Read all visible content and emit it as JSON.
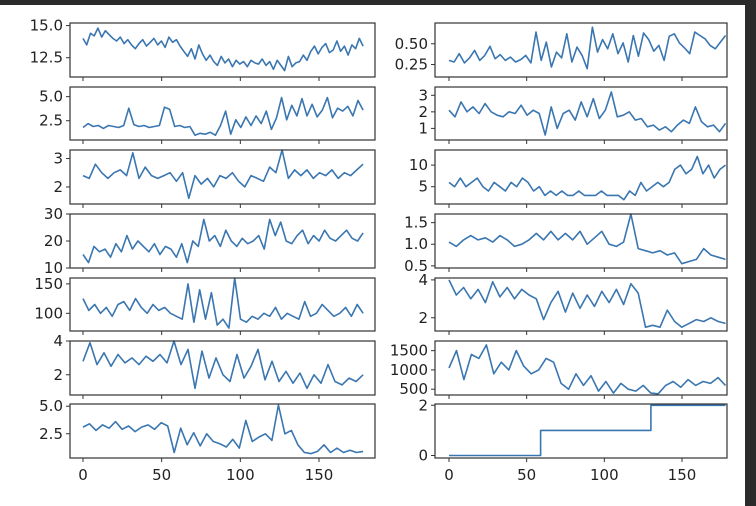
{
  "figure": {
    "background": "#ffffff",
    "frame_color": "#2b2b2b",
    "line_color": "#3a76b0",
    "axis_color": "#333333"
  },
  "chart_data": [
    {
      "type": "line",
      "panel": "r1c1",
      "x_range": [
        0,
        178
      ],
      "ylim": [
        11,
        15.2
      ],
      "yticks": [
        12.5,
        15.0
      ],
      "ytick_labels": [
        "12.5",
        "15.0"
      ],
      "y": [
        14.0,
        13.5,
        14.4,
        14.2,
        14.8,
        14.1,
        14.6,
        14.3,
        14.0,
        13.8,
        14.1,
        13.6,
        13.9,
        13.5,
        13.2,
        13.6,
        13.9,
        13.4,
        13.7,
        14.0,
        13.5,
        13.8,
        13.3,
        14.1,
        13.7,
        13.9,
        13.4,
        13.0,
        12.6,
        13.2,
        12.4,
        13.5,
        12.8,
        12.3,
        12.7,
        12.2,
        11.9,
        12.6,
        12.1,
        12.4,
        11.8,
        12.3,
        12.0,
        12.2,
        11.8,
        12.3,
        12.1,
        12.0,
        12.4,
        11.9,
        12.2,
        11.6,
        12.3,
        11.9,
        11.5,
        12.6,
        11.8,
        12.1,
        12.2,
        12.7,
        12.3,
        13.0,
        13.4,
        12.8,
        13.3,
        13.6,
        12.9,
        13.1,
        13.8,
        13.0,
        13.4,
        12.7,
        13.5,
        13.2,
        14.0,
        13.4
      ]
    },
    {
      "type": "line",
      "panel": "r1c2",
      "x_range": [
        0,
        178
      ],
      "ylim": [
        0.1,
        0.75
      ],
      "yticks": [
        0.25,
        0.5
      ],
      "ytick_labels": [
        "0.25",
        "0.50"
      ],
      "y": [
        0.3,
        0.28,
        0.38,
        0.27,
        0.33,
        0.42,
        0.3,
        0.36,
        0.47,
        0.32,
        0.37,
        0.3,
        0.34,
        0.28,
        0.31,
        0.36,
        0.27,
        0.64,
        0.3,
        0.52,
        0.22,
        0.4,
        0.33,
        0.62,
        0.28,
        0.46,
        0.36,
        0.2,
        0.7,
        0.4,
        0.55,
        0.44,
        0.62,
        0.38,
        0.51,
        0.28,
        0.6,
        0.35,
        0.63,
        0.55,
        0.41,
        0.48,
        0.3,
        0.59,
        0.62,
        0.51,
        0.45,
        0.38,
        0.64,
        0.6,
        0.56,
        0.48,
        0.44,
        0.52,
        0.6
      ]
    },
    {
      "type": "line",
      "panel": "r2c1",
      "x_range": [
        0,
        178
      ],
      "ylim": [
        0.5,
        6.0
      ],
      "yticks": [
        2.5,
        5.0
      ],
      "ytick_labels": [
        "2.5",
        "5.0"
      ],
      "y": [
        1.8,
        2.2,
        1.9,
        2.0,
        1.7,
        2.0,
        1.9,
        1.8,
        2.0,
        3.8,
        2.1,
        1.9,
        2.0,
        1.8,
        1.9,
        2.0,
        3.9,
        3.7,
        1.9,
        2.0,
        1.8,
        1.9,
        1.0,
        1.2,
        1.1,
        1.3,
        1.0,
        2.0,
        3.5,
        1.1,
        2.6,
        1.8,
        2.9,
        2.0,
        3.0,
        2.2,
        3.5,
        1.6,
        2.8,
        4.9,
        2.6,
        4.1,
        3.0,
        4.8,
        3.0,
        4.2,
        2.9,
        3.6,
        4.9,
        2.8,
        3.8,
        3.5,
        4.0,
        3.0,
        4.6,
        3.6
      ]
    },
    {
      "type": "line",
      "panel": "r2c2",
      "x_range": [
        0,
        178
      ],
      "ylim": [
        0.3,
        3.5
      ],
      "yticks": [
        1,
        2,
        3
      ],
      "ytick_labels": [
        "1",
        "2",
        "3"
      ],
      "y": [
        2.1,
        1.7,
        2.6,
        2.0,
        2.3,
        1.9,
        2.5,
        2.0,
        1.8,
        1.7,
        2.0,
        1.9,
        2.4,
        1.8,
        2.1,
        1.9,
        0.6,
        2.3,
        1.0,
        1.9,
        2.1,
        1.5,
        2.6,
        1.7,
        2.8,
        1.6,
        2.1,
        3.2,
        1.7,
        1.8,
        2.0,
        1.5,
        1.6,
        1.1,
        1.2,
        0.9,
        1.1,
        0.8,
        1.2,
        1.5,
        1.3,
        2.3,
        1.4,
        1.1,
        1.2,
        0.8,
        1.3
      ]
    },
    {
      "type": "line",
      "panel": "r3c1",
      "x_range": [
        0,
        178
      ],
      "ylim": [
        1.4,
        3.3
      ],
      "yticks": [
        2,
        3
      ],
      "ytick_labels": [
        "2",
        "3"
      ],
      "y": [
        2.4,
        2.3,
        2.8,
        2.5,
        2.3,
        2.5,
        2.6,
        2.4,
        3.2,
        2.3,
        2.7,
        2.4,
        2.3,
        2.4,
        2.5,
        2.2,
        2.5,
        1.6,
        2.4,
        2.1,
        2.3,
        2.0,
        2.4,
        2.3,
        2.5,
        2.2,
        2.0,
        2.4,
        2.3,
        2.2,
        2.7,
        2.5,
        3.3,
        2.3,
        2.6,
        2.4,
        2.6,
        2.3,
        2.5,
        2.4,
        2.6,
        2.3,
        2.5,
        2.4,
        2.6,
        2.8
      ]
    },
    {
      "type": "line",
      "panel": "r3c2",
      "x_range": [
        0,
        178
      ],
      "ylim": [
        1,
        13.5
      ],
      "yticks": [
        5,
        10
      ],
      "ytick_labels": [
        "5",
        "10"
      ],
      "y": [
        6,
        5,
        7,
        5,
        6,
        7,
        5,
        4,
        6,
        5,
        4,
        6,
        5,
        7,
        6,
        4,
        5,
        3,
        4,
        3,
        4,
        3,
        3,
        4,
        3,
        3,
        3,
        4,
        3,
        3,
        3,
        2,
        4,
        3,
        6,
        4,
        5,
        6,
        5,
        6,
        9,
        10,
        8,
        9,
        12,
        8,
        10,
        7,
        9,
        10
      ]
    },
    {
      "type": "line",
      "panel": "r4c1",
      "x_range": [
        0,
        178
      ],
      "ylim": [
        10,
        30
      ],
      "yticks": [
        10,
        20,
        30
      ],
      "ytick_labels": [
        "10",
        "20",
        "30"
      ],
      "y": [
        15,
        12,
        18,
        16,
        17,
        14,
        19,
        16,
        22,
        17,
        20,
        18,
        16,
        19,
        15,
        18,
        17,
        14,
        19,
        12,
        20,
        18,
        28,
        20,
        22,
        18,
        24,
        20,
        18,
        21,
        19,
        20,
        22,
        17,
        28,
        22,
        27,
        20,
        19,
        22,
        24,
        19,
        22,
        20,
        24,
        21,
        20,
        22,
        24,
        21,
        20,
        23
      ]
    },
    {
      "type": "line",
      "panel": "r4c2",
      "x_range": [
        0,
        178
      ],
      "ylim": [
        0.45,
        1.7
      ],
      "yticks": [
        0.5,
        1.0,
        1.5
      ],
      "ytick_labels": [
        "0.5",
        "1.0",
        "1.5"
      ],
      "y": [
        1.05,
        0.95,
        1.1,
        1.2,
        1.1,
        1.15,
        1.05,
        1.2,
        1.1,
        0.95,
        1.0,
        1.1,
        1.25,
        1.1,
        1.3,
        1.1,
        1.25,
        1.1,
        1.3,
        1.0,
        1.15,
        1.3,
        1.0,
        0.95,
        1.05,
        1.7,
        0.9,
        0.85,
        0.8,
        0.85,
        0.75,
        0.8,
        0.55,
        0.6,
        0.65,
        0.9,
        0.75,
        0.7,
        0.65
      ]
    },
    {
      "type": "line",
      "panel": "r5c1",
      "x_range": [
        0,
        178
      ],
      "ylim": [
        70,
        160
      ],
      "yticks": [
        100,
        150
      ],
      "ytick_labels": [
        "100",
        "150"
      ],
      "y": [
        125,
        105,
        115,
        100,
        110,
        95,
        115,
        120,
        105,
        125,
        110,
        100,
        115,
        105,
        110,
        100,
        95,
        90,
        150,
        85,
        140,
        90,
        135,
        80,
        90,
        75,
        160,
        90,
        85,
        95,
        90,
        100,
        95,
        110,
        90,
        100,
        95,
        90,
        120,
        95,
        100,
        115,
        105,
        95,
        100,
        110,
        95,
        115,
        100
      ]
    },
    {
      "type": "line",
      "panel": "r5c2",
      "x_range": [
        0,
        178
      ],
      "ylim": [
        1.3,
        4.1
      ],
      "yticks": [
        2,
        4
      ],
      "ytick_labels": [
        "2",
        "4"
      ],
      "y": [
        4.0,
        3.2,
        3.6,
        3.0,
        3.5,
        2.8,
        3.9,
        3.1,
        3.6,
        3.0,
        3.5,
        3.2,
        3.0,
        1.9,
        2.8,
        3.4,
        2.3,
        3.3,
        2.5,
        3.2,
        2.6,
        3.4,
        2.8,
        3.5,
        2.7,
        3.8,
        3.3,
        1.5,
        1.6,
        1.5,
        2.4,
        1.8,
        1.5,
        1.7,
        1.9,
        1.8,
        2.0,
        1.8,
        1.7
      ]
    },
    {
      "type": "line",
      "panel": "r6c1",
      "x_range": [
        0,
        178
      ],
      "ylim": [
        0.8,
        4.0
      ],
      "yticks": [
        2,
        4
      ],
      "ytick_labels": [
        "2",
        "4"
      ],
      "y": [
        2.8,
        3.9,
        2.6,
        3.3,
        2.5,
        3.2,
        2.7,
        3.0,
        2.6,
        3.1,
        2.8,
        3.2,
        2.7,
        4.0,
        2.6,
        3.5,
        1.2,
        3.4,
        1.8,
        3.0,
        2.0,
        1.6,
        3.2,
        1.8,
        2.5,
        3.5,
        1.7,
        2.8,
        1.6,
        2.2,
        1.5,
        2.1,
        1.2,
        2.0,
        1.5,
        2.6,
        1.6,
        1.4,
        1.8,
        1.6,
        2.0
      ]
    },
    {
      "type": "line",
      "panel": "r6c2",
      "x_range": [
        0,
        178
      ],
      "ylim": [
        350,
        1750
      ],
      "yticks": [
        500,
        1000,
        1500
      ],
      "ytick_labels": [
        "500",
        "1000",
        "1500"
      ],
      "y": [
        1050,
        1500,
        750,
        1400,
        1300,
        1650,
        900,
        1200,
        1000,
        1500,
        1100,
        900,
        1000,
        1300,
        1200,
        650,
        500,
        900,
        600,
        850,
        450,
        700,
        400,
        650,
        500,
        450,
        600,
        400,
        380,
        600,
        700,
        550,
        750,
        600,
        700,
        650,
        800,
        600
      ]
    },
    {
      "type": "line",
      "panel": "r7c1",
      "x_range": [
        0,
        178
      ],
      "ylim": [
        0.3,
        5.2
      ],
      "yticks": [
        2.5,
        5.0
      ],
      "ytick_labels": [
        "2.5",
        "5.0"
      ],
      "y": [
        3.1,
        3.4,
        2.8,
        3.3,
        3.0,
        3.6,
        2.9,
        3.2,
        2.7,
        3.1,
        3.3,
        2.9,
        3.5,
        3.2,
        0.8,
        3.0,
        1.5,
        2.6,
        1.4,
        2.5,
        1.8,
        1.6,
        1.3,
        2.0,
        1.2,
        3.7,
        1.8,
        2.2,
        2.5,
        1.9,
        5.1,
        2.5,
        2.8,
        1.5,
        0.8,
        0.7,
        0.9,
        1.5,
        0.8,
        1.2,
        0.8,
        1.0,
        0.8,
        0.9
      ]
    },
    {
      "type": "line",
      "panel": "r7c2",
      "x_range": [
        0,
        178
      ],
      "ylim": [
        -0.1,
        2.05
      ],
      "yticks": [
        0,
        2
      ],
      "ytick_labels": [
        "0",
        "2"
      ],
      "x": [
        0,
        59,
        59,
        130,
        130,
        178
      ],
      "y": [
        0,
        0,
        1,
        1,
        2,
        2
      ]
    }
  ],
  "x_axis": {
    "ticks": [
      0,
      50,
      100,
      150
    ],
    "tick_labels": [
      "0",
      "50",
      "100",
      "150"
    ]
  }
}
